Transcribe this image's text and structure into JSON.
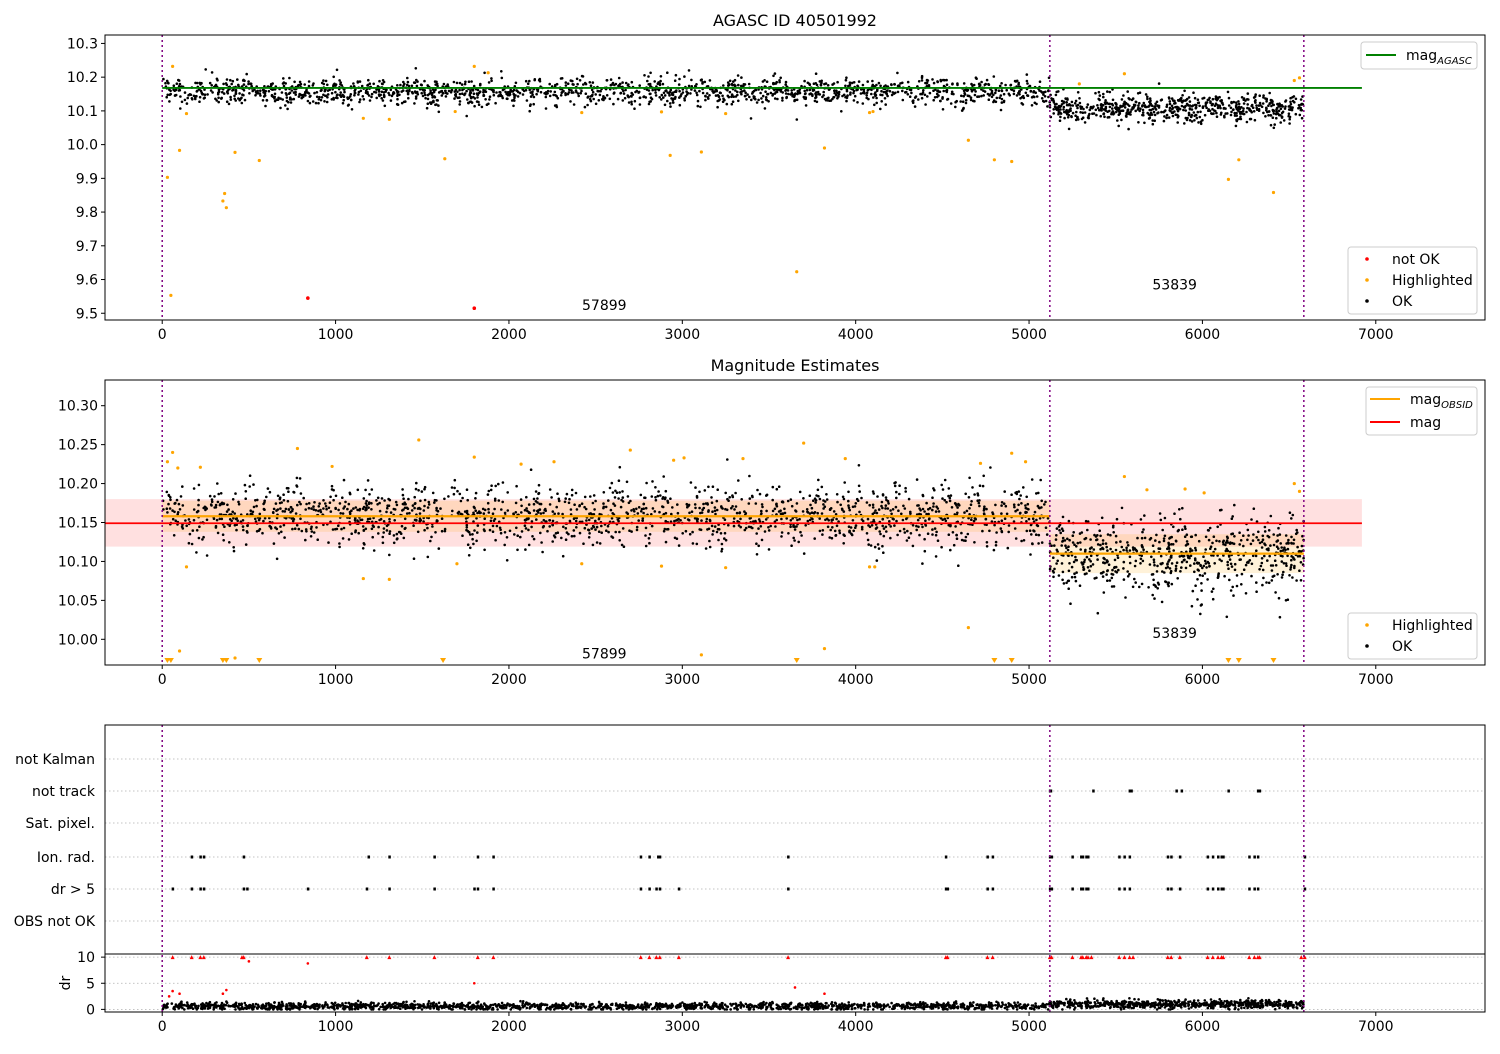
{
  "chart_data": [
    {
      "type": "scatter",
      "title": "AGASC ID 40501992",
      "xlim": [
        -330,
        7630
      ],
      "ylim": [
        9.48,
        10.325
      ],
      "xticks": [
        0,
        1000,
        2000,
        3000,
        4000,
        5000,
        6000,
        7000
      ],
      "xtick_labels": [
        "0",
        "1000",
        "2000",
        "3000",
        "4000",
        "5000",
        "6000",
        "7000"
      ],
      "yticks": [
        9.5,
        9.6,
        9.7,
        9.8,
        9.9,
        10.0,
        10.1,
        10.2,
        10.3
      ],
      "ytick_labels": [
        "9.5",
        "9.6",
        "9.7",
        "9.8",
        "9.9",
        "10.0",
        "10.1",
        "10.2",
        "10.3"
      ],
      "obsid_boundaries": [
        0,
        5120,
        6585
      ],
      "obsid_labels": [
        {
          "text": "57899",
          "x": 2550,
          "y": 9.525
        },
        {
          "text": "53839",
          "x": 5840,
          "y": 9.585
        }
      ],
      "lines": [
        {
          "name": "mag",
          "subscript": "AGASC",
          "y": 10.168,
          "x": [
            0,
            6920
          ],
          "color": "#008000"
        }
      ],
      "series": [
        {
          "name": "not OK",
          "color": "#ff0000",
          "x": [
            840,
            1800
          ],
          "y": [
            9.545,
            9.515
          ]
        },
        {
          "name": "Highlighted",
          "color": "#ffa500",
          "x": [
            30,
            50,
            60,
            100,
            140,
            350,
            360,
            370,
            420,
            560,
            1160,
            1310,
            1630,
            1690,
            1800,
            1880,
            2420,
            2880,
            2930,
            3110,
            3250,
            3660,
            3820,
            4080,
            4100,
            4650,
            4800,
            4900,
            5290,
            5550,
            6150,
            6210,
            6410,
            6530,
            6560
          ],
          "y": [
            9.903,
            9.553,
            10.232,
            9.983,
            10.092,
            9.833,
            9.855,
            9.813,
            9.977,
            9.953,
            10.078,
            10.075,
            9.958,
            10.098,
            10.232,
            10.213,
            10.095,
            10.097,
            9.968,
            9.978,
            10.092,
            9.623,
            9.99,
            10.095,
            10.098,
            10.013,
            9.955,
            9.95,
            10.18,
            10.21,
            9.897,
            9.955,
            9.858,
            10.19,
            10.198
          ]
        },
        {
          "name": "OK",
          "color": "#000000",
          "segments": [
            {
              "x0": 0,
              "x1": 5120,
              "mean": 10.158,
              "sd": 0.019,
              "n": 1700
            },
            {
              "x0": 5120,
              "x1": 6585,
              "mean": 10.108,
              "sd": 0.02,
              "n": 650
            }
          ]
        }
      ],
      "legend_upper": [
        "mag_AGASC"
      ],
      "legend_lower": [
        "not OK",
        "Highlighted",
        "OK"
      ]
    },
    {
      "type": "scatter",
      "title": "Magnitude Estimates",
      "xlim": [
        -330,
        7630
      ],
      "ylim": [
        9.967,
        10.333
      ],
      "xticks": [
        0,
        1000,
        2000,
        3000,
        4000,
        5000,
        6000,
        7000
      ],
      "xtick_labels": [
        "0",
        "1000",
        "2000",
        "3000",
        "4000",
        "5000",
        "6000",
        "7000"
      ],
      "yticks": [
        10.0,
        10.05,
        10.1,
        10.15,
        10.2,
        10.25,
        10.3
      ],
      "ytick_labels": [
        "10.00",
        "10.05",
        "10.10",
        "10.15",
        "10.20",
        "10.25",
        "10.30"
      ],
      "obsid_boundaries": [
        0,
        5120,
        6585
      ],
      "obsid_labels": [
        {
          "text": "57899",
          "x": 2550,
          "y": 9.982
        },
        {
          "text": "53839",
          "x": 5840,
          "y": 10.008
        }
      ],
      "mag": {
        "y": 10.149,
        "band": [
          10.119,
          10.18
        ],
        "x": [
          -330,
          6920
        ],
        "color": "#ff0000"
      },
      "mag_obsid": [
        {
          "x0": 0,
          "x1": 5120,
          "y": 10.158,
          "band": [
            10.138,
            10.178
          ]
        },
        {
          "x0": 5120,
          "x1": 6585,
          "y": 10.11,
          "band": [
            10.085,
            10.135
          ]
        }
      ],
      "series": [
        {
          "name": "Highlighted",
          "color": "#ffa500",
          "x": [
            30,
            60,
            90,
            100,
            140,
            220,
            420,
            780,
            980,
            1160,
            1310,
            1480,
            1700,
            1800,
            2070,
            2260,
            2420,
            2700,
            2880,
            2950,
            3010,
            3110,
            3250,
            3350,
            3700,
            3820,
            3940,
            4080,
            4110,
            4650,
            4720,
            4900,
            4980,
            5550,
            5680,
            5900,
            6010,
            6530,
            6560
          ],
          "y": [
            10.228,
            10.24,
            10.22,
            9.985,
            10.093,
            10.221,
            9.976,
            10.245,
            10.222,
            10.078,
            10.077,
            10.256,
            10.097,
            10.234,
            10.225,
            10.228,
            10.097,
            10.243,
            10.094,
            10.23,
            10.233,
            9.98,
            10.092,
            10.232,
            10.252,
            9.988,
            10.232,
            10.093,
            10.093,
            10.015,
            10.226,
            10.239,
            10.228,
            10.209,
            10.192,
            10.193,
            10.188,
            10.2,
            10.19
          ]
        },
        {
          "name": "OK",
          "color": "#000000",
          "segments": [
            {
              "x0": 0,
              "x1": 5120,
              "mean": 10.158,
              "sd": 0.019,
              "n": 1700
            },
            {
              "x0": 5120,
              "x1": 6585,
              "mean": 10.108,
              "sd": 0.024,
              "n": 650
            }
          ]
        }
      ],
      "below_range_markers": {
        "color": "#ffa500",
        "x": [
          30,
          50,
          350,
          370,
          560,
          1620,
          3660,
          4800,
          4900,
          6150,
          6210,
          6410
        ]
      },
      "legend_upper": [
        "mag_OBSID",
        "mag"
      ],
      "legend_lower": [
        "Highlighted",
        "OK"
      ]
    },
    {
      "type": "scatter",
      "title": "",
      "xlim": [
        -330,
        7630
      ],
      "xticks": [
        0,
        1000,
        2000,
        3000,
        4000,
        5000,
        6000,
        7000
      ],
      "xtick_labels": [
        "0",
        "1000",
        "2000",
        "3000",
        "4000",
        "5000",
        "6000",
        "7000"
      ],
      "obsid_boundaries": [
        0,
        5120,
        6585
      ],
      "flag_rows": [
        "not Kalman",
        "not track",
        "Sat. pixel.",
        "Ion. rad.",
        "dr > 5",
        "OBS not OK"
      ],
      "flags": {
        "not track": [
          5120,
          5125,
          5370,
          5580,
          5590,
          5850,
          5880,
          6150,
          6320,
          6330
        ],
        "Ion. rad.": [
          170,
          220,
          240,
          470,
          1190,
          1310,
          1570,
          1820,
          1910,
          2760,
          2810,
          2860,
          2870,
          3610,
          4520,
          4760,
          4790,
          5120,
          5130,
          5250,
          5300,
          5310,
          5330,
          5340,
          5520,
          5550,
          5580,
          5800,
          5820,
          5870,
          6030,
          6060,
          6090,
          6110,
          6120,
          6270,
          6300,
          6320,
          6590
        ],
        "dr > 5": [
          60,
          170,
          220,
          240,
          470,
          490,
          840,
          1180,
          1310,
          1570,
          1800,
          1820,
          1910,
          2760,
          2810,
          2850,
          2870,
          2980,
          3610,
          4520,
          4530,
          4760,
          4790,
          5120,
          5130,
          5250,
          5300,
          5310,
          5330,
          5340,
          5520,
          5550,
          5580,
          5800,
          5820,
          5870,
          6030,
          6060,
          6090,
          6110,
          6120,
          6270,
          6300,
          6320,
          6590
        ]
      },
      "dr": {
        "ylabel": "dr",
        "yticks": [
          0,
          5,
          10
        ],
        "ytick_labels": [
          "0",
          "5",
          "10"
        ],
        "ylim": [
          -0.5,
          10.6
        ],
        "clipped_at": 10,
        "clipped_color": "#ff0000",
        "clipped_x": [
          60,
          170,
          220,
          240,
          460,
          470,
          1180,
          1310,
          1570,
          1820,
          1910,
          2760,
          2810,
          2850,
          2870,
          2980,
          3610,
          4520,
          4530,
          4760,
          4790,
          5120,
          5130,
          5250,
          5300,
          5310,
          5330,
          5340,
          5360,
          5520,
          5550,
          5580,
          5600,
          5800,
          5820,
          5870,
          6030,
          6060,
          6090,
          6110,
          6120,
          6270,
          6300,
          6320,
          6330,
          6570,
          6590
        ],
        "outlier_color": "#ff0000",
        "outliers": [
          {
            "x": 40,
            "y": 2.5
          },
          {
            "x": 60,
            "y": 3.5
          },
          {
            "x": 100,
            "y": 3
          },
          {
            "x": 350,
            "y": 3
          },
          {
            "x": 370,
            "y": 3.7
          },
          {
            "x": 500,
            "y": 9.2
          },
          {
            "x": 840,
            "y": 8.8
          },
          {
            "x": 1800,
            "y": 5
          },
          {
            "x": 3820,
            "y": 3
          },
          {
            "x": 3650,
            "y": 4.2
          }
        ],
        "base_segments": [
          {
            "x0": 0,
            "x1": 5120,
            "mean": 0.6,
            "sd": 0.35,
            "n": 1700
          },
          {
            "x0": 5120,
            "x1": 6585,
            "mean": 1.0,
            "sd": 0.4,
            "n": 650
          }
        ]
      }
    }
  ]
}
